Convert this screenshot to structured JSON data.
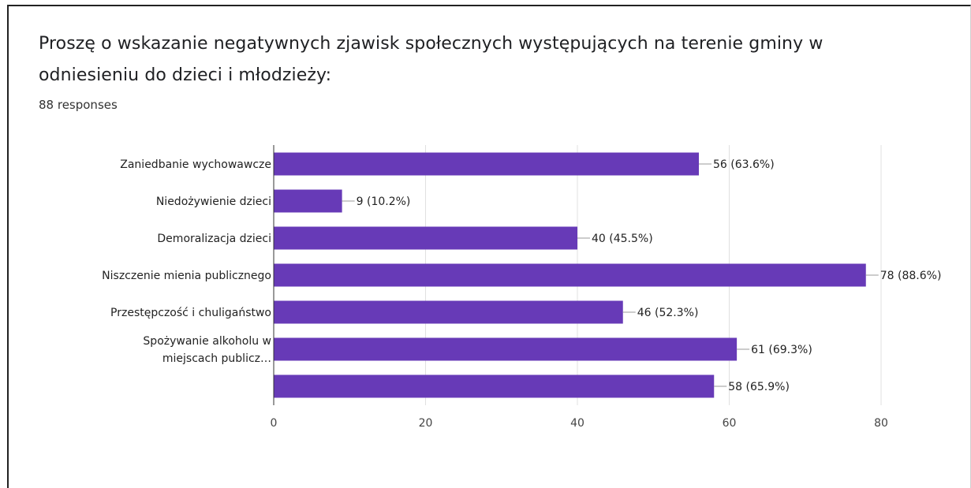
{
  "question": "Proszę o wskazanie negatywnych zjawisk społecznych występujących na terenie gminy w odniesieniu do dzieci i młodzieży:",
  "responses": "88 responses",
  "chart_data": {
    "type": "bar",
    "orientation": "horizontal",
    "categories": [
      [
        "Zaniedbanie wychowawcze"
      ],
      [
        "Niedożywienie dzieci"
      ],
      [
        "Demoralizacja dzieci"
      ],
      [
        "Niszczenie mienia publicznego"
      ],
      [
        "Przestępczość i chuligaństwo"
      ],
      [
        "Spożywanie alkoholu w",
        "miejscach publicz…"
      ],
      []
    ],
    "values": [
      56,
      9,
      40,
      78,
      46,
      61,
      58
    ],
    "data_labels": [
      "56 (63.6%)",
      "9 (10.2%)",
      "40 (45.5%)",
      "78 (88.6%)",
      "46 (52.3%)",
      "61 (69.3%)",
      "58 (65.9%)"
    ],
    "xlim": [
      0,
      80
    ],
    "xticks": [
      "0",
      "20",
      "40",
      "60",
      "80"
    ],
    "grid": true,
    "bar_color": "#673ab7"
  }
}
